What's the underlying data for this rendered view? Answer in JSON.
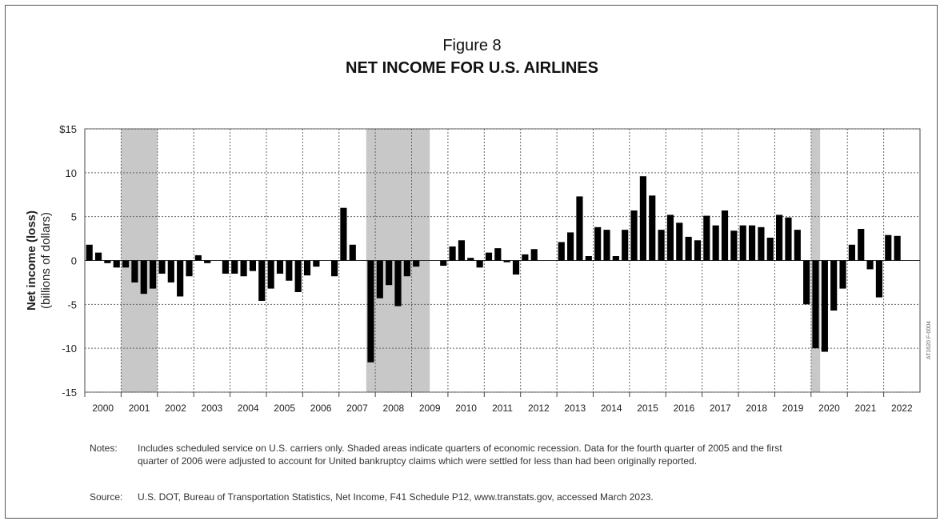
{
  "figure": {
    "label": "Figure 8",
    "title": "NET INCOME FOR U.S. AIRLINES"
  },
  "notes": {
    "tag": "Notes:",
    "text": "Includes scheduled service on U.S. carriers only.  Shaded areas indicate quarters of economic recession. Data for the fourth quarter of 2005 and the first quarter of 2006 were adjusted to account for United bankruptcy claims which were settled for less than had been originally reported."
  },
  "source": {
    "tag": "Source:",
    "text": "U.S. DOT, Bureau of Transportation Statistics, Net Income, F41 Schedule P12, www.transtats.gov, accessed March 2023."
  },
  "side_code": "AT1620 F-0004",
  "chart_data": {
    "type": "bar",
    "ylabel_line1": "Net income (loss)",
    "ylabel_line2": "(billions of dollars)",
    "ylim": [
      -15,
      15
    ],
    "yticks": [
      15,
      10,
      5,
      0,
      -5,
      -10,
      -15
    ],
    "ytick_labels": [
      "$15",
      "10",
      "5",
      "0",
      "-5",
      "-10",
      "-15"
    ],
    "years": [
      "2000",
      "2001",
      "2002",
      "2003",
      "2004",
      "2005",
      "2006",
      "2007",
      "2008",
      "2009",
      "2010",
      "2011",
      "2012",
      "2013",
      "2014",
      "2015",
      "2016",
      "2017",
      "2018",
      "2019",
      "2020",
      "2021",
      "2022"
    ],
    "grid": true,
    "bar_color": "#000000",
    "recession_color": "#c8c8c8",
    "recession_periods": [
      {
        "start": "2001Q1",
        "end": "2001Q4"
      },
      {
        "start": "2007Q4",
        "end": "2009Q2"
      },
      {
        "start": "2020Q1",
        "end": "2020Q1"
      }
    ],
    "quarters": [
      {
        "q": "2000Q1",
        "v": 1.8
      },
      {
        "q": "2000Q2",
        "v": 0.9
      },
      {
        "q": "2000Q3",
        "v": -0.3
      },
      {
        "q": "2000Q4",
        "v": -0.8
      },
      {
        "q": "2001Q1",
        "v": -0.8
      },
      {
        "q": "2001Q2",
        "v": -2.5
      },
      {
        "q": "2001Q3",
        "v": -3.8
      },
      {
        "q": "2001Q4",
        "v": -3.2
      },
      {
        "q": "2002Q1",
        "v": -1.5
      },
      {
        "q": "2002Q2",
        "v": -2.5
      },
      {
        "q": "2002Q3",
        "v": -4.1
      },
      {
        "q": "2002Q4",
        "v": -1.8
      },
      {
        "q": "2003Q1",
        "v": 0.6
      },
      {
        "q": "2003Q2",
        "v": -0.3
      },
      {
        "q": "2003Q3",
        "v": 0.0
      },
      {
        "q": "2003Q4",
        "v": -1.5
      },
      {
        "q": "2004Q1",
        "v": -1.5
      },
      {
        "q": "2004Q2",
        "v": -1.8
      },
      {
        "q": "2004Q3",
        "v": -1.2
      },
      {
        "q": "2004Q4",
        "v": -4.6
      },
      {
        "q": "2005Q1",
        "v": -3.2
      },
      {
        "q": "2005Q2",
        "v": -1.5
      },
      {
        "q": "2005Q3",
        "v": -2.3
      },
      {
        "q": "2005Q4",
        "v": -3.6
      },
      {
        "q": "2006Q1",
        "v": -1.7
      },
      {
        "q": "2006Q2",
        "v": -0.7
      },
      {
        "q": "2006Q3",
        "v": 0.0
      },
      {
        "q": "2006Q4",
        "v": -1.8
      },
      {
        "q": "2007Q1",
        "v": 6.0
      },
      {
        "q": "2007Q2",
        "v": 1.8
      },
      {
        "q": "2007Q3",
        "v": 0.0
      },
      {
        "q": "2007Q4",
        "v": -11.6
      },
      {
        "q": "2008Q1",
        "v": -4.3
      },
      {
        "q": "2008Q2",
        "v": -2.8
      },
      {
        "q": "2008Q3",
        "v": -5.2
      },
      {
        "q": "2008Q4",
        "v": -1.8
      },
      {
        "q": "2009Q1",
        "v": -0.7
      },
      {
        "q": "2009Q2",
        "v": 0.0
      },
      {
        "q": "2009Q3",
        "v": 0.0
      },
      {
        "q": "2009Q4",
        "v": -0.6
      },
      {
        "q": "2010Q1",
        "v": 1.6
      },
      {
        "q": "2010Q2",
        "v": 2.3
      },
      {
        "q": "2010Q3",
        "v": 0.3
      },
      {
        "q": "2010Q4",
        "v": -0.8
      },
      {
        "q": "2011Q1",
        "v": 0.9
      },
      {
        "q": "2011Q2",
        "v": 1.4
      },
      {
        "q": "2011Q3",
        "v": -0.2
      },
      {
        "q": "2011Q4",
        "v": -1.6
      },
      {
        "q": "2012Q1",
        "v": 0.7
      },
      {
        "q": "2012Q2",
        "v": 1.3
      },
      {
        "q": "2012Q3",
        "v": 0.0
      },
      {
        "q": "2012Q4",
        "v": 0.0
      },
      {
        "q": "2013Q1",
        "v": 2.1
      },
      {
        "q": "2013Q2",
        "v": 3.2
      },
      {
        "q": "2013Q3",
        "v": 7.3
      },
      {
        "q": "2013Q4",
        "v": 0.5
      },
      {
        "q": "2014Q1",
        "v": 3.8
      },
      {
        "q": "2014Q2",
        "v": 3.5
      },
      {
        "q": "2014Q3",
        "v": 0.5
      },
      {
        "q": "2014Q4",
        "v": 3.5
      },
      {
        "q": "2015Q1",
        "v": 5.7
      },
      {
        "q": "2015Q2",
        "v": 9.6
      },
      {
        "q": "2015Q3",
        "v": 7.4
      },
      {
        "q": "2015Q4",
        "v": 3.5
      },
      {
        "q": "2016Q1",
        "v": 5.2
      },
      {
        "q": "2016Q2",
        "v": 4.3
      },
      {
        "q": "2016Q3",
        "v": 2.7
      },
      {
        "q": "2016Q4",
        "v": 2.3
      },
      {
        "q": "2017Q1",
        "v": 5.1
      },
      {
        "q": "2017Q2",
        "v": 4.0
      },
      {
        "q": "2017Q3",
        "v": 5.7
      },
      {
        "q": "2017Q4",
        "v": 3.4
      },
      {
        "q": "2018Q1",
        "v": 4.0
      },
      {
        "q": "2018Q2",
        "v": 4.0
      },
      {
        "q": "2018Q3",
        "v": 3.8
      },
      {
        "q": "2018Q4",
        "v": 2.6
      },
      {
        "q": "2019Q1",
        "v": 5.2
      },
      {
        "q": "2019Q2",
        "v": 4.9
      },
      {
        "q": "2019Q3",
        "v": 3.5
      },
      {
        "q": "2019Q4",
        "v": -5.0
      },
      {
        "q": "2020Q1",
        "v": -10.0
      },
      {
        "q": "2020Q2",
        "v": -10.4
      },
      {
        "q": "2020Q3",
        "v": -5.7
      },
      {
        "q": "2020Q4",
        "v": -3.2
      },
      {
        "q": "2021Q1",
        "v": 1.8
      },
      {
        "q": "2021Q2",
        "v": 3.6
      },
      {
        "q": "2021Q3",
        "v": -1.0
      },
      {
        "q": "2021Q4",
        "v": -4.2
      },
      {
        "q": "2022Q1",
        "v": 2.9
      },
      {
        "q": "2022Q2",
        "v": 2.8
      }
    ]
  }
}
